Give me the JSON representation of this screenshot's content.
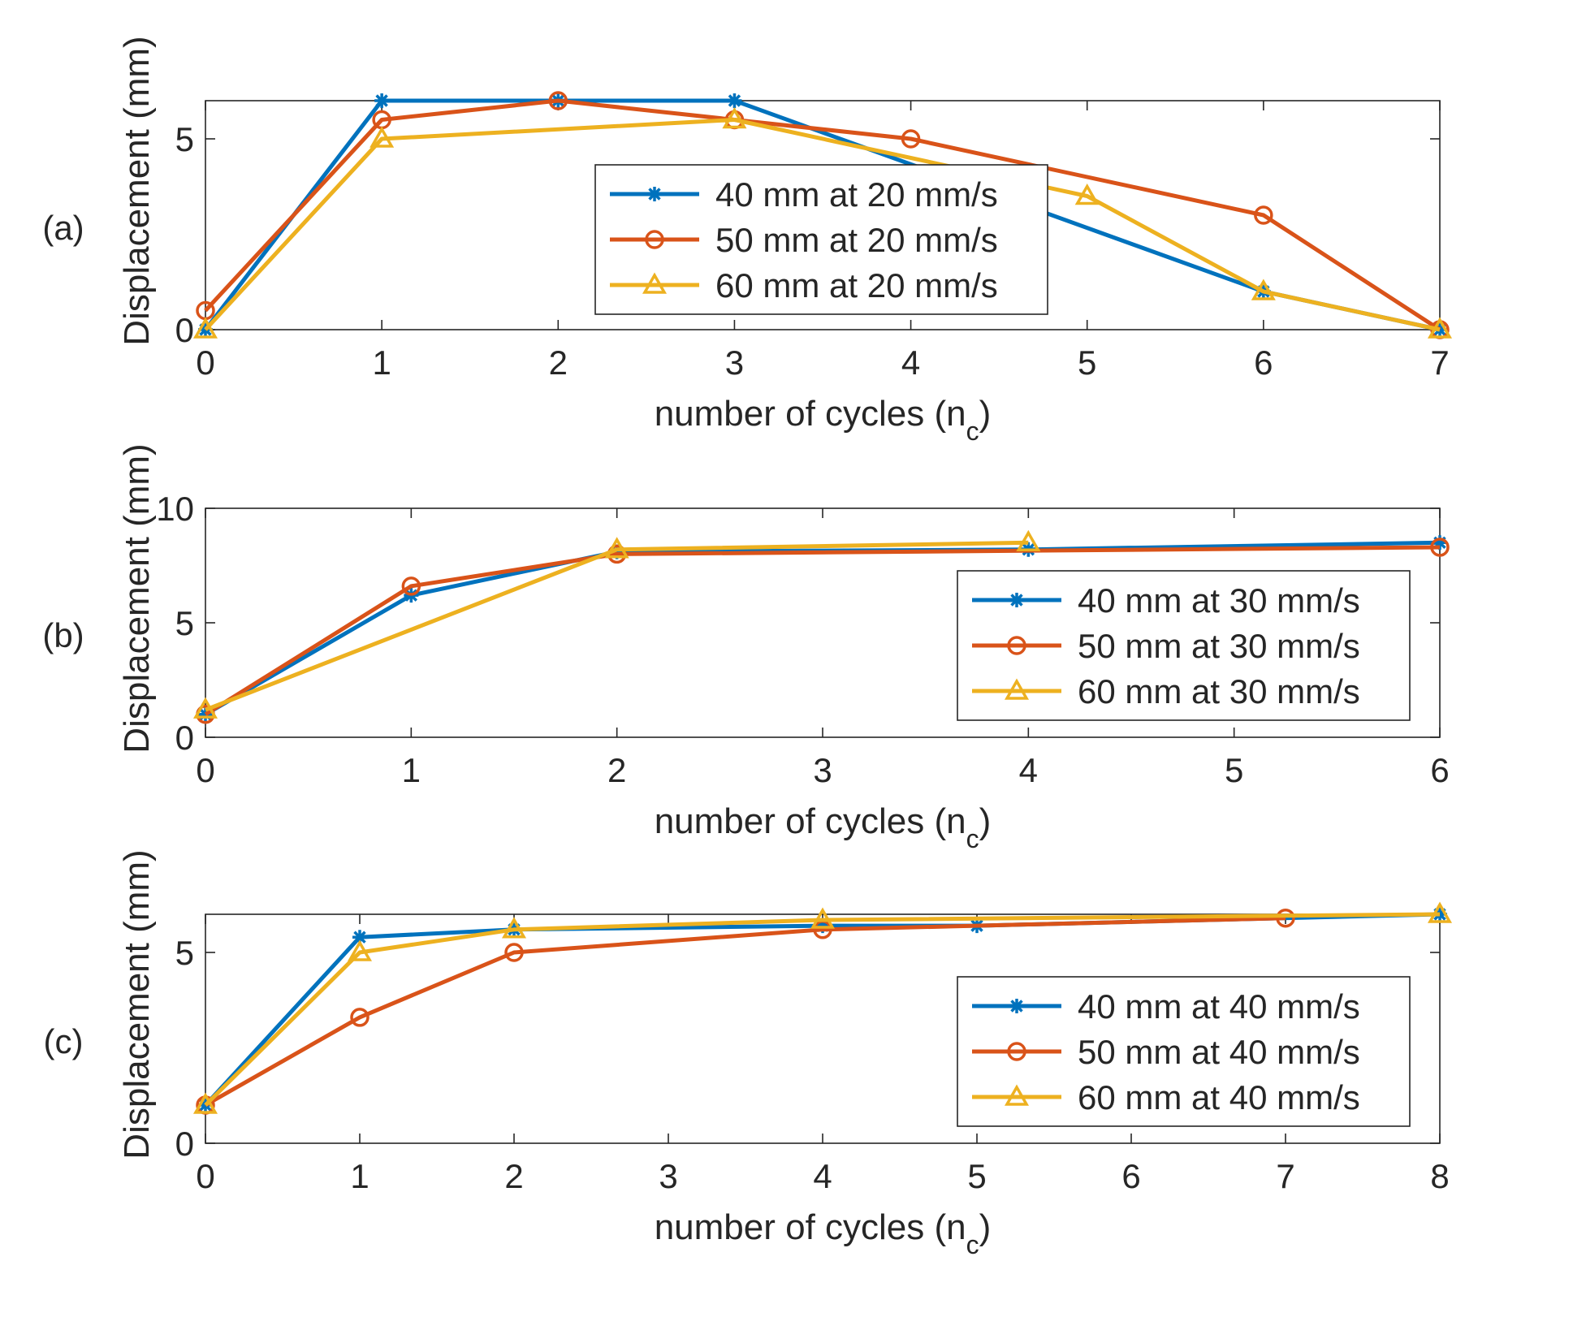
{
  "chart_data": [
    {
      "type": "line",
      "panel_label": "(a)",
      "xlabel": "number of cycles (n",
      "xlabel_sub": "c",
      "xlabel_end": ")",
      "ylabel": "Displacement (mm)",
      "xlim": [
        0,
        7
      ],
      "ylim": [
        0,
        6
      ],
      "xticks": [
        "0",
        "1",
        "2",
        "3",
        "4",
        "5",
        "6",
        "7"
      ],
      "yticks": [
        "0",
        "5"
      ],
      "legend_position": "center-right",
      "series": [
        {
          "name": "40 mm at 20 mm/s",
          "color": "#0072BD",
          "marker": "asterisk",
          "x": [
            0,
            1,
            2,
            3,
            6,
            7
          ],
          "y": [
            0,
            6,
            6,
            6,
            1,
            0
          ]
        },
        {
          "name": "50 mm at 20 mm/s",
          "color": "#D95319",
          "marker": "circle",
          "x": [
            0,
            1,
            2,
            3,
            4,
            6,
            7
          ],
          "y": [
            0.5,
            5.5,
            6,
            5.5,
            5,
            3,
            0
          ]
        },
        {
          "name": "60 mm at 20 mm/s",
          "color": "#EDB120",
          "marker": "triangle",
          "x": [
            0,
            1,
            3,
            5,
            6,
            7
          ],
          "y": [
            0,
            5,
            5.5,
            3.5,
            1,
            0
          ]
        }
      ]
    },
    {
      "type": "line",
      "panel_label": "(b)",
      "xlabel": "number of cycles (n",
      "xlabel_sub": "c",
      "xlabel_end": ")",
      "ylabel": "Displacement (mm)",
      "xlim": [
        0,
        6
      ],
      "ylim": [
        0,
        10
      ],
      "xticks": [
        "0",
        "1",
        "2",
        "3",
        "4",
        "5",
        "6"
      ],
      "yticks": [
        "0",
        "5",
        "10"
      ],
      "legend_position": "right",
      "series": [
        {
          "name": "40 mm at 30 mm/s",
          "color": "#0072BD",
          "marker": "asterisk",
          "x": [
            0,
            1,
            2,
            4,
            6
          ],
          "y": [
            1,
            6.2,
            8.1,
            8.2,
            8.5
          ]
        },
        {
          "name": "50 mm at 30 mm/s",
          "color": "#D95319",
          "marker": "circle",
          "x": [
            0,
            1,
            2,
            6
          ],
          "y": [
            1,
            6.6,
            8,
            8.3
          ]
        },
        {
          "name": "60 mm at 30 mm/s",
          "color": "#EDB120",
          "marker": "triangle",
          "x": [
            0,
            2,
            4
          ],
          "y": [
            1.2,
            8.2,
            8.5
          ]
        }
      ]
    },
    {
      "type": "line",
      "panel_label": "(c)",
      "xlabel": "number of cycles (n",
      "xlabel_sub": "c",
      "xlabel_end": ")",
      "ylabel": "Displacement (mm)",
      "xlim": [
        0,
        8
      ],
      "ylim": [
        0,
        6
      ],
      "xticks": [
        "0",
        "1",
        "2",
        "3",
        "4",
        "5",
        "6",
        "7",
        "8"
      ],
      "yticks": [
        "0",
        "5"
      ],
      "legend_position": "right",
      "series": [
        {
          "name": "40 mm at 40 mm/s",
          "color": "#0072BD",
          "marker": "asterisk",
          "x": [
            0,
            1,
            2,
            4,
            5,
            8
          ],
          "y": [
            1,
            5.4,
            5.6,
            5.7,
            5.7,
            6
          ]
        },
        {
          "name": "50 mm at 40 mm/s",
          "color": "#D95319",
          "marker": "circle",
          "x": [
            0,
            1,
            2,
            4,
            7
          ],
          "y": [
            1,
            3.3,
            5,
            5.6,
            5.9
          ]
        },
        {
          "name": "60 mm at 40 mm/s",
          "color": "#EDB120",
          "marker": "triangle",
          "x": [
            0,
            1,
            2,
            4,
            8
          ],
          "y": [
            1,
            5,
            5.6,
            5.85,
            6
          ]
        }
      ]
    }
  ]
}
